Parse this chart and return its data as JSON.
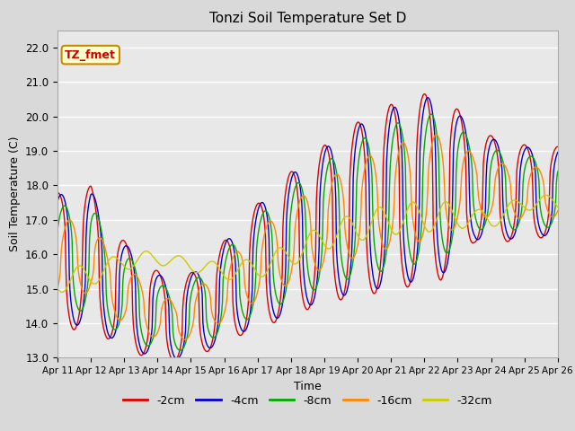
{
  "title": "Tonzi Soil Temperature Set D",
  "xlabel": "Time",
  "ylabel": "Soil Temperature (C)",
  "ylim": [
    13.0,
    22.5
  ],
  "yticks": [
    13.0,
    14.0,
    15.0,
    16.0,
    17.0,
    18.0,
    19.0,
    20.0,
    21.0,
    22.0
  ],
  "xtick_labels": [
    "Apr 11",
    "Apr 12",
    "Apr 13",
    "Apr 14",
    "Apr 15",
    "Apr 16",
    "Apr 17",
    "Apr 18",
    "Apr 19",
    "Apr 20",
    "Apr 21",
    "Apr 22",
    "Apr 23",
    "Apr 24",
    "Apr 25",
    "Apr 26"
  ],
  "legend_labels": [
    "-2cm",
    "-4cm",
    "-8cm",
    "-16cm",
    "-32cm"
  ],
  "line_colors": [
    "#dd0000",
    "#0000cc",
    "#00aa00",
    "#ff8800",
    "#cccc00"
  ],
  "annotation_text": "TZ_fmet",
  "annotation_bg": "#ffffcc",
  "annotation_border": "#cc8800",
  "days": 15,
  "n_per_day": 48
}
